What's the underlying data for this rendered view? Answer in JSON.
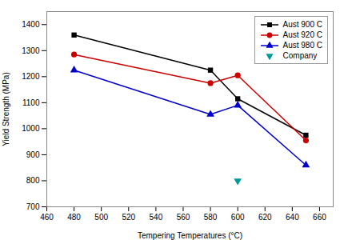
{
  "chart_data": {
    "type": "line",
    "xlabel": "Tempering Temperatures (°C)",
    "ylabel": "Yield Strength (MPa)",
    "series": [
      {
        "name": "Aust 900 C",
        "color": "#000000",
        "marker": "square",
        "line_style": "solid",
        "x": [
          480,
          580,
          600,
          650
        ],
        "values": [
          1360,
          1225,
          1115,
          975
        ]
      },
      {
        "name": "Aust 920 C",
        "color": "#cc0000",
        "marker": "circle",
        "line_style": "solid",
        "x": [
          480,
          580,
          600,
          650
        ],
        "values": [
          1285,
          1175,
          1205,
          955
        ]
      },
      {
        "name": "Aust 980 C",
        "color": "#0000cc",
        "marker": "triangle-up",
        "line_style": "solid",
        "x": [
          480,
          580,
          600,
          650
        ],
        "values": [
          1225,
          1055,
          1090,
          860
        ]
      },
      {
        "name": "Company",
        "color": "#009999",
        "marker": "triangle-down",
        "line_style": "none",
        "x": [
          600
        ],
        "values": [
          800
        ]
      }
    ],
    "xlim": [
      460,
      670
    ],
    "ylim": [
      700,
      1450
    ],
    "xticks": [
      460,
      480,
      500,
      520,
      540,
      560,
      580,
      600,
      620,
      640,
      660
    ],
    "yticks": [
      700,
      800,
      900,
      1000,
      1100,
      1200,
      1300,
      1400
    ],
    "legend": "upper right",
    "grid": false
  }
}
